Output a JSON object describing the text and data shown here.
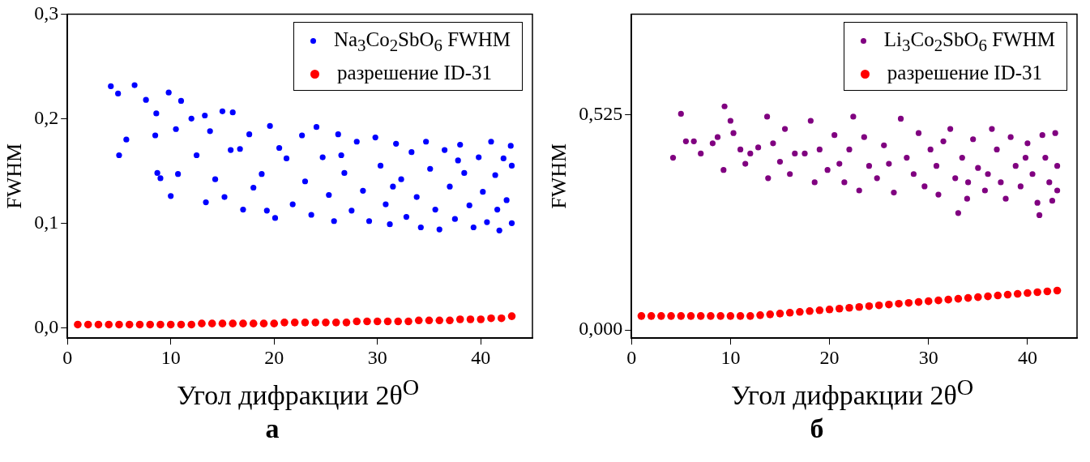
{
  "chart_data": [
    {
      "type": "scatter",
      "title": "а",
      "xlabel": "Угол дифракции 2θ$^{O}$",
      "ylabel": "FWHM",
      "xlim": [
        0,
        45
      ],
      "xticks": [
        0,
        10,
        20,
        30,
        40
      ],
      "ylim": [
        -0.01,
        0.3
      ],
      "yticks": [
        {
          "value": 0,
          "label": "0,0"
        },
        {
          "value": 0.1,
          "label": "0,1"
        },
        {
          "value": 0.2,
          "label": "0,2"
        },
        {
          "value": 0.3,
          "label": "0,3"
        }
      ],
      "grid": false,
      "legend": "top right",
      "marker": "circle",
      "series": [
        {
          "name": "Na$_{3}$Co$_{2}$SbO$_{6}$ FWHM",
          "color": "#0000ff",
          "x": [
            4.2,
            4.9,
            5.0,
            5.7,
            6.5,
            7.6,
            8.6,
            8.5,
            8.7,
            9.0,
            9.8,
            10.0,
            10.5,
            10.7,
            11.0,
            12.0,
            12.5,
            13.3,
            13.4,
            13.8,
            14.3,
            15.0,
            15.2,
            16.0,
            15.8,
            16.7,
            17.0,
            17.6,
            18.0,
            18.8,
            19.3,
            19.6,
            20.1,
            20.5,
            21.2,
            21.8,
            22.7,
            23.0,
            23.6,
            24.1,
            24.7,
            25.3,
            25.8,
            26.2,
            26.8,
            27.5,
            28.0,
            28.6,
            29.2,
            29.8,
            30.3,
            30.8,
            31.2,
            31.8,
            32.3,
            32.8,
            33.3,
            33.8,
            34.2,
            34.7,
            35.1,
            35.6,
            36.0,
            36.5,
            37.0,
            37.5,
            38.0,
            38.4,
            38.9,
            39.3,
            39.8,
            40.2,
            40.6,
            41.0,
            41.4,
            41.8,
            42.2,
            42.5,
            42.9,
            43.0,
            43.0,
            26.5,
            31.5,
            37.8,
            41.6
          ],
          "values": [
            0.231,
            0.224,
            0.165,
            0.18,
            0.232,
            0.218,
            0.205,
            0.184,
            0.148,
            0.143,
            0.225,
            0.126,
            0.19,
            0.147,
            0.217,
            0.2,
            0.165,
            0.203,
            0.12,
            0.188,
            0.142,
            0.207,
            0.125,
            0.206,
            0.17,
            0.171,
            0.113,
            0.185,
            0.134,
            0.147,
            0.112,
            0.193,
            0.105,
            0.172,
            0.162,
            0.118,
            0.184,
            0.14,
            0.108,
            0.192,
            0.163,
            0.127,
            0.102,
            0.185,
            0.148,
            0.112,
            0.178,
            0.131,
            0.102,
            0.182,
            0.155,
            0.118,
            0.099,
            0.176,
            0.142,
            0.106,
            0.168,
            0.125,
            0.096,
            0.178,
            0.152,
            0.113,
            0.094,
            0.17,
            0.135,
            0.104,
            0.175,
            0.148,
            0.117,
            0.096,
            0.163,
            0.13,
            0.101,
            0.178,
            0.146,
            0.093,
            0.162,
            0.122,
            0.174,
            0.1,
            0.155,
            0.165,
            0.135,
            0.16,
            0.113
          ]
        },
        {
          "name": "разрешение ID-31",
          "color": "#ff0000",
          "x": [
            1,
            2,
            3,
            4,
            5,
            6,
            7,
            8,
            9,
            10,
            11,
            12,
            13,
            14,
            15,
            16,
            17,
            18,
            19,
            20,
            21,
            22,
            23,
            24,
            25,
            26,
            27,
            28,
            29,
            30,
            31,
            32,
            33,
            34,
            35,
            36,
            37,
            38,
            39,
            40,
            41,
            42,
            43
          ],
          "values": [
            0.003,
            0.003,
            0.003,
            0.003,
            0.003,
            0.003,
            0.003,
            0.003,
            0.003,
            0.003,
            0.003,
            0.003,
            0.004,
            0.004,
            0.004,
            0.004,
            0.004,
            0.004,
            0.004,
            0.004,
            0.005,
            0.005,
            0.005,
            0.005,
            0.005,
            0.005,
            0.005,
            0.006,
            0.006,
            0.006,
            0.006,
            0.006,
            0.006,
            0.007,
            0.007,
            0.007,
            0.007,
            0.008,
            0.008,
            0.008,
            0.009,
            0.009,
            0.011
          ]
        }
      ]
    },
    {
      "type": "scatter",
      "title": "б",
      "xlabel": "Угол дифракции 2θ$^{O}$",
      "ylabel": "FWHM",
      "xlim": [
        0,
        45
      ],
      "xticks": [
        0,
        10,
        20,
        30,
        40
      ],
      "ylim": [
        -0.02,
        0.77
      ],
      "yticks": [
        {
          "value": 0,
          "label": "0,000"
        },
        {
          "value": 0.525,
          "label": "0,525"
        }
      ],
      "grid": false,
      "legend": "top right",
      "marker": "circle",
      "series": [
        {
          "name": "Li$_{3}$Co$_{2}$SbO$_{6}$ FWHM",
          "color": "#800080",
          "x": [
            4.2,
            5.0,
            5.5,
            6.3,
            7.0,
            8.2,
            8.7,
            9.4,
            9.3,
            10.0,
            10.3,
            11.0,
            11.5,
            12.0,
            12.8,
            13.7,
            13.8,
            14.3,
            15.0,
            15.5,
            16.0,
            16.5,
            17.5,
            18.1,
            18.5,
            19.0,
            19.8,
            20.5,
            21.0,
            21.5,
            22.4,
            22.0,
            23.0,
            23.5,
            24.0,
            24.8,
            25.5,
            26.0,
            26.5,
            27.2,
            27.8,
            28.5,
            29.0,
            29.6,
            30.2,
            30.8,
            31.5,
            31.0,
            32.2,
            32.7,
            33.4,
            33.9,
            34.5,
            35.0,
            35.7,
            36.4,
            36.9,
            37.3,
            37.8,
            38.3,
            38.8,
            39.3,
            40.0,
            40.5,
            41.0,
            41.5,
            41.8,
            42.2,
            42.5,
            42.8,
            43.0,
            43.0,
            36.0,
            39.8,
            34.0,
            41.2,
            33.0
          ],
          "values": [
            0.42,
            0.527,
            0.46,
            0.46,
            0.43,
            0.455,
            0.47,
            0.545,
            0.39,
            0.51,
            0.48,
            0.44,
            0.405,
            0.43,
            0.445,
            0.52,
            0.37,
            0.455,
            0.41,
            0.49,
            0.38,
            0.43,
            0.43,
            0.51,
            0.36,
            0.44,
            0.39,
            0.475,
            0.405,
            0.36,
            0.52,
            0.44,
            0.34,
            0.47,
            0.4,
            0.37,
            0.45,
            0.405,
            0.335,
            0.515,
            0.42,
            0.38,
            0.48,
            0.35,
            0.44,
            0.4,
            0.46,
            0.33,
            0.49,
            0.37,
            0.42,
            0.32,
            0.465,
            0.395,
            0.34,
            0.49,
            0.44,
            0.36,
            0.32,
            0.47,
            0.4,
            0.35,
            0.455,
            0.38,
            0.31,
            0.475,
            0.42,
            0.36,
            0.315,
            0.48,
            0.4,
            0.34,
            0.38,
            0.42,
            0.36,
            0.28,
            0.285
          ]
        },
        {
          "name": "разрешение ID-31",
          "color": "#ff0000",
          "x": [
            1,
            2,
            3,
            4,
            5,
            6,
            7,
            8,
            9,
            10,
            11,
            12,
            13,
            14,
            15,
            16,
            17,
            18,
            19,
            20,
            21,
            22,
            23,
            24,
            25,
            26,
            27,
            28,
            29,
            30,
            31,
            32,
            33,
            34,
            35,
            36,
            37,
            38,
            39,
            40,
            41,
            42,
            43
          ],
          "values": [
            0.034,
            0.034,
            0.034,
            0.034,
            0.034,
            0.034,
            0.034,
            0.034,
            0.034,
            0.034,
            0.034,
            0.034,
            0.036,
            0.038,
            0.04,
            0.042,
            0.044,
            0.046,
            0.048,
            0.05,
            0.052,
            0.054,
            0.056,
            0.058,
            0.06,
            0.062,
            0.064,
            0.066,
            0.068,
            0.07,
            0.072,
            0.074,
            0.076,
            0.078,
            0.08,
            0.082,
            0.084,
            0.086,
            0.088,
            0.09,
            0.092,
            0.094,
            0.096
          ]
        }
      ]
    }
  ]
}
